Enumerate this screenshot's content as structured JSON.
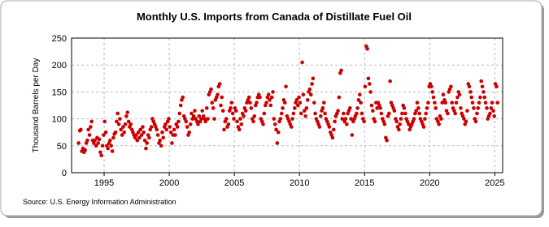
{
  "chart_data": {
    "type": "scatter",
    "title": "Monthly U.S. Imports from Canada of Distillate Fuel Oil",
    "y_label": "Thousand Barrels per Day",
    "source": "Source: U.S. Energy Information Administration",
    "xlim": [
      1992.5,
      2025.6
    ],
    "xticks": [
      1995,
      2000,
      2005,
      2010,
      2015,
      2020,
      2025
    ],
    "ylim": [
      0,
      250
    ],
    "yticks": [
      0,
      50,
      100,
      150,
      200,
      250
    ],
    "grid": true,
    "series": [
      {
        "color": "#cc0000",
        "x": [
          1993.04,
          1993.13,
          1993.21,
          1993.29,
          1993.38,
          1993.46,
          1993.54,
          1993.63,
          1993.71,
          1993.79,
          1993.88,
          1993.96,
          1994.04,
          1994.13,
          1994.21,
          1994.29,
          1994.38,
          1994.46,
          1994.54,
          1994.63,
          1994.71,
          1994.79,
          1994.88,
          1994.96,
          1995.04,
          1995.13,
          1995.21,
          1995.29,
          1995.38,
          1995.46,
          1995.54,
          1995.63,
          1995.71,
          1995.79,
          1995.88,
          1995.96,
          1996.04,
          1996.13,
          1996.21,
          1996.29,
          1996.38,
          1996.46,
          1996.54,
          1996.63,
          1996.71,
          1996.79,
          1996.88,
          1996.96,
          1997.04,
          1997.13,
          1997.21,
          1997.29,
          1997.38,
          1997.46,
          1997.54,
          1997.63,
          1997.71,
          1997.79,
          1997.88,
          1997.96,
          1998.04,
          1998.13,
          1998.21,
          1998.29,
          1998.38,
          1998.46,
          1998.54,
          1998.63,
          1998.71,
          1998.79,
          1998.88,
          1998.96,
          1999.04,
          1999.13,
          1999.21,
          1999.29,
          1999.38,
          1999.46,
          1999.54,
          1999.63,
          1999.71,
          1999.79,
          1999.88,
          1999.96,
          2000.04,
          2000.13,
          2000.21,
          2000.29,
          2000.38,
          2000.46,
          2000.54,
          2000.63,
          2000.71,
          2000.79,
          2000.88,
          2000.96,
          2001.04,
          2001.13,
          2001.21,
          2001.29,
          2001.38,
          2001.46,
          2001.54,
          2001.63,
          2001.71,
          2001.79,
          2001.88,
          2001.96,
          2002.04,
          2002.13,
          2002.21,
          2002.29,
          2002.38,
          2002.46,
          2002.54,
          2002.63,
          2002.71,
          2002.79,
          2002.88,
          2002.96,
          2003.04,
          2003.13,
          2003.21,
          2003.29,
          2003.38,
          2003.46,
          2003.54,
          2003.63,
          2003.71,
          2003.79,
          2003.88,
          2003.96,
          2004.04,
          2004.13,
          2004.21,
          2004.29,
          2004.38,
          2004.46,
          2004.54,
          2004.63,
          2004.71,
          2004.79,
          2004.88,
          2004.96,
          2005.04,
          2005.13,
          2005.21,
          2005.29,
          2005.38,
          2005.46,
          2005.54,
          2005.63,
          2005.71,
          2005.79,
          2005.88,
          2005.96,
          2006.04,
          2006.13,
          2006.21,
          2006.29,
          2006.38,
          2006.46,
          2006.54,
          2006.63,
          2006.71,
          2006.79,
          2006.88,
          2006.96,
          2007.04,
          2007.13,
          2007.21,
          2007.29,
          2007.38,
          2007.46,
          2007.54,
          2007.63,
          2007.71,
          2007.79,
          2007.88,
          2007.96,
          2008.04,
          2008.13,
          2008.21,
          2008.29,
          2008.38,
          2008.46,
          2008.54,
          2008.63,
          2008.71,
          2008.79,
          2008.88,
          2008.96,
          2009.04,
          2009.13,
          2009.21,
          2009.29,
          2009.38,
          2009.46,
          2009.54,
          2009.63,
          2009.71,
          2009.79,
          2009.88,
          2009.96,
          2010.04,
          2010.13,
          2010.21,
          2010.29,
          2010.38,
          2010.46,
          2010.54,
          2010.63,
          2010.71,
          2010.79,
          2010.88,
          2010.96,
          2011.04,
          2011.13,
          2011.21,
          2011.29,
          2011.38,
          2011.46,
          2011.54,
          2011.63,
          2011.71,
          2011.79,
          2011.88,
          2011.96,
          2012.04,
          2012.13,
          2012.21,
          2012.29,
          2012.38,
          2012.46,
          2012.54,
          2012.63,
          2012.71,
          2012.79,
          2012.88,
          2012.96,
          2013.04,
          2013.13,
          2013.21,
          2013.29,
          2013.38,
          2013.46,
          2013.54,
          2013.63,
          2013.71,
          2013.79,
          2013.88,
          2013.96,
          2014.04,
          2014.13,
          2014.21,
          2014.29,
          2014.38,
          2014.46,
          2014.54,
          2014.63,
          2014.71,
          2014.79,
          2014.88,
          2014.96,
          2015.04,
          2015.13,
          2015.21,
          2015.29,
          2015.38,
          2015.46,
          2015.54,
          2015.63,
          2015.71,
          2015.79,
          2015.88,
          2015.96,
          2016.04,
          2016.13,
          2016.21,
          2016.29,
          2016.38,
          2016.46,
          2016.54,
          2016.63,
          2016.71,
          2016.79,
          2016.88,
          2016.96,
          2017.04,
          2017.13,
          2017.21,
          2017.29,
          2017.38,
          2017.46,
          2017.54,
          2017.63,
          2017.71,
          2017.79,
          2017.88,
          2017.96,
          2018.04,
          2018.13,
          2018.21,
          2018.29,
          2018.38,
          2018.46,
          2018.54,
          2018.63,
          2018.71,
          2018.79,
          2018.88,
          2018.96,
          2019.04,
          2019.13,
          2019.21,
          2019.29,
          2019.38,
          2019.46,
          2019.54,
          2019.63,
          2019.71,
          2019.79,
          2019.88,
          2019.96,
          2020.04,
          2020.13,
          2020.21,
          2020.29,
          2020.38,
          2020.46,
          2020.54,
          2020.63,
          2020.71,
          2020.79,
          2020.88,
          2020.96,
          2021.04,
          2021.13,
          2021.21,
          2021.29,
          2021.38,
          2021.46,
          2021.54,
          2021.63,
          2021.71,
          2021.79,
          2021.88,
          2021.96,
          2022.04,
          2022.13,
          2022.21,
          2022.29,
          2022.38,
          2022.46,
          2022.54,
          2022.63,
          2022.71,
          2022.79,
          2022.88,
          2022.96,
          2023.04,
          2023.13,
          2023.21,
          2023.29,
          2023.38,
          2023.46,
          2023.54,
          2023.63,
          2023.71,
          2023.79,
          2023.88,
          2023.96,
          2024.04,
          2024.13,
          2024.21,
          2024.29,
          2024.38,
          2024.46,
          2024.54,
          2024.63,
          2024.71,
          2024.79,
          2024.88,
          2024.96,
          2025.04,
          2025.13,
          2025.21
        ],
        "values": [
          55,
          78,
          80,
          40,
          45,
          38,
          42,
          55,
          60,
          80,
          70,
          85,
          95,
          60,
          55,
          60,
          50,
          65,
          55,
          62,
          38,
          32,
          50,
          70,
          95,
          75,
          50,
          45,
          55,
          60,
          50,
          40,
          65,
          72,
          75,
          95,
          110,
          90,
          100,
          80,
          70,
          85,
          75,
          90,
          105,
          112,
          95,
          85,
          90,
          80,
          75,
          70,
          65,
          70,
          60,
          75,
          65,
          80,
          70,
          85,
          75,
          60,
          45,
          55,
          70,
          65,
          80,
          85,
          100,
          95,
          90,
          85,
          80,
          70,
          55,
          60,
          50,
          75,
          65,
          85,
          90,
          80,
          95,
          100,
          85,
          75,
          55,
          70,
          80,
          70,
          90,
          85,
          95,
          110,
          125,
          135,
          140,
          105,
          100,
          95,
          85,
          70,
          75,
          90,
          110,
          100,
          105,
          115,
          100,
          95,
          90,
          105,
          95,
          100,
          115,
          105,
          100,
          95,
          120,
          100,
          145,
          150,
          155,
          130,
          120,
          100,
          135,
          140,
          145,
          160,
          165,
          125,
          140,
          115,
          80,
          95,
          100,
          85,
          90,
          115,
          120,
          130,
          110,
          100,
          120,
          115,
          95,
          85,
          80,
          100,
          90,
          110,
          105,
          120,
          115,
          130,
          135,
          140,
          130,
          120,
          100,
          95,
          105,
          125,
          130,
          140,
          145,
          140,
          100,
          95,
          90,
          110,
          125,
          130,
          140,
          145,
          135,
          125,
          140,
          150,
          100,
          90,
          80,
          55,
          75,
          95,
          100,
          110,
          120,
          135,
          130,
          160,
          105,
          100,
          95,
          90,
          85,
          100,
          110,
          120,
          130,
          135,
          125,
          140,
          130,
          110,
          205,
          145,
          115,
          105,
          120,
          135,
          150,
          155,
          145,
          165,
          175,
          130,
          110,
          100,
          95,
          90,
          85,
          105,
          115,
          120,
          130,
          110,
          100,
          95,
          90,
          85,
          75,
          70,
          65,
          80,
          95,
          105,
          110,
          115,
          140,
          185,
          190,
          100,
          110,
          95,
          100,
          90,
          110,
          115,
          120,
          100,
          70,
          95,
          100,
          105,
          110,
          120,
          135,
          145,
          130,
          110,
          100,
          95,
          160,
          235,
          230,
          175,
          165,
          150,
          125,
          115,
          100,
          95,
          130,
          120,
          130,
          125,
          120,
          110,
          100,
          95,
          90,
          65,
          60,
          105,
          110,
          170,
          130,
          125,
          120,
          115,
          100,
          95,
          85,
          80,
          90,
          100,
          110,
          125,
          120,
          110,
          100,
          95,
          90,
          80,
          85,
          90,
          95,
          100,
          110,
          115,
          130,
          120,
          110,
          100,
          95,
          90,
          85,
          100,
          110,
          120,
          130,
          160,
          165,
          160,
          150,
          140,
          130,
          120,
          100,
          95,
          90,
          105,
          100,
          130,
          145,
          135,
          130,
          115,
          110,
          150,
          155,
          160,
          130,
          120,
          115,
          110,
          130,
          140,
          150,
          145,
          120,
          110,
          105,
          100,
          90,
          95,
          115,
          165,
          160,
          150,
          140,
          130,
          120,
          100,
          95,
          110,
          120,
          130,
          140,
          170,
          160,
          150,
          140,
          130,
          120,
          100,
          105,
          110,
          120,
          130,
          115,
          105,
          165,
          160,
          130
        ]
      }
    ]
  }
}
